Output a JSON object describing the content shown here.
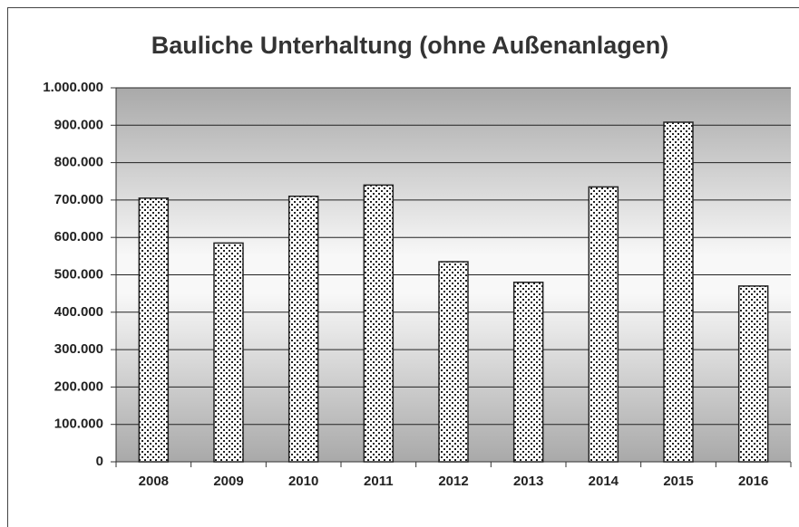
{
  "chart_data": {
    "type": "bar",
    "title": "Bauliche Unterhaltung (ohne Außenanlagen)",
    "categories": [
      "2008",
      "2009",
      "2010",
      "2011",
      "2012",
      "2013",
      "2014",
      "2015",
      "2016"
    ],
    "values": [
      705000,
      585000,
      710000,
      740000,
      535000,
      480000,
      735000,
      908000,
      470000
    ],
    "color": "#222222",
    "ylim": [
      0,
      1000000
    ],
    "yticks": [
      0,
      {
        "value": 100000,
        "label": "100.000"
      },
      {
        "value": 200000,
        "label": "200.000"
      },
      {
        "value": 300000,
        "label": "300.000"
      },
      {
        "value": 400000,
        "label": "400.000"
      },
      {
        "value": 500000,
        "label": "500.000"
      },
      {
        "value": 600000,
        "label": "600.000"
      },
      {
        "value": 700000,
        "label": "700.000"
      },
      {
        "value": 800000,
        "label": "800.000"
      },
      {
        "value": 900000,
        "label": "900.000"
      },
      {
        "value": 1000000,
        "label": "1.000.000"
      }
    ],
    "grid": true
  }
}
